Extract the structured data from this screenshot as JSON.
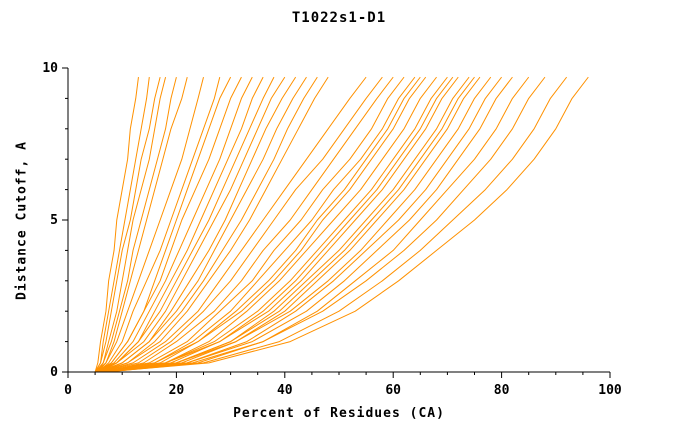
{
  "chart_data": {
    "type": "line",
    "title": "T1022s1-D1",
    "xlabel": "Percent of Residues (CA)",
    "ylabel": "Distance Cutoff, A",
    "xlim": [
      0,
      100
    ],
    "ylim": [
      0,
      10
    ],
    "x_major_ticks": [
      0,
      20,
      40,
      60,
      80,
      100
    ],
    "x_minor_step": 5,
    "y_major_ticks": [
      0,
      5,
      10
    ],
    "y_minor_step": 1,
    "grid": false,
    "legend": "none",
    "line_color": "#ff9100",
    "axis_color": "#000000",
    "background": "#ffffff",
    "y_samples": [
      0,
      0.3,
      1,
      2,
      3,
      4,
      5,
      6,
      7,
      8,
      9,
      9.7
    ],
    "series": [
      [
        5,
        5.5,
        6,
        7,
        7.5,
        8.5,
        9,
        10,
        11,
        11.5,
        12.5,
        13
      ],
      [
        5,
        6,
        6.5,
        7.5,
        8.5,
        9.5,
        10.5,
        11.5,
        12.5,
        13.5,
        14.5,
        15
      ],
      [
        5,
        6,
        7,
        8,
        9,
        10,
        11.5,
        12.5,
        13.5,
        15,
        16,
        17
      ],
      [
        5.5,
        6.5,
        7.5,
        9,
        10,
        11,
        12,
        13.5,
        15,
        16,
        17,
        18
      ],
      [
        5,
        6.5,
        8,
        9.5,
        11,
        12,
        13.5,
        15,
        16.5,
        18,
        19,
        20
      ],
      [
        5.5,
        7,
        8.5,
        10,
        11.5,
        13,
        14.5,
        16,
        17.5,
        19,
        21,
        22
      ],
      [
        5,
        7,
        9,
        11,
        13,
        15,
        17,
        19,
        21,
        22.5,
        24,
        25
      ],
      [
        5.5,
        7.5,
        10,
        12,
        14.5,
        17,
        19,
        21,
        23,
        25,
        27,
        28
      ],
      [
        5,
        8,
        11,
        14,
        16,
        18,
        20,
        22,
        24,
        26,
        28,
        30
      ],
      [
        5.5,
        8,
        11,
        14,
        17,
        19,
        21,
        23.5,
        26,
        28,
        30,
        32
      ],
      [
        5,
        8.5,
        12,
        15,
        18,
        20.5,
        23,
        25.5,
        28,
        30,
        32,
        34
      ],
      [
        6,
        9,
        13,
        16,
        19,
        22,
        24.5,
        27,
        29.5,
        32,
        34,
        36
      ],
      [
        5.5,
        9,
        13,
        17,
        20,
        23,
        26,
        28.5,
        31,
        33.5,
        36,
        38
      ],
      [
        5,
        9,
        14,
        18,
        21,
        24,
        27,
        30,
        32.5,
        35,
        37.5,
        40
      ],
      [
        6,
        10,
        15,
        19,
        22.5,
        26,
        29,
        31.5,
        34,
        36.5,
        39.5,
        42
      ],
      [
        5.5,
        10,
        15,
        20,
        24,
        27,
        30,
        33,
        36,
        38.5,
        41.5,
        44
      ],
      [
        6,
        11,
        16,
        21,
        25,
        28.5,
        32,
        35,
        38,
        40.5,
        43.5,
        46
      ],
      [
        5.5,
        11,
        17,
        22,
        26,
        30,
        33.5,
        36.5,
        39.5,
        42.5,
        45.5,
        48
      ],
      [
        6,
        12,
        18,
        24,
        28,
        32,
        36,
        40,
        44,
        48,
        52,
        55
      ],
      [
        6,
        13,
        19,
        25,
        30,
        34,
        38,
        42,
        47,
        51,
        55,
        58
      ],
      [
        6.5,
        14,
        20,
        27,
        32,
        36,
        41,
        45,
        49,
        53,
        57,
        60
      ],
      [
        6,
        15,
        22,
        28,
        34,
        38,
        43,
        47,
        52,
        56,
        59,
        62
      ],
      [
        6.5,
        16,
        23,
        30,
        35,
        40,
        45,
        49,
        54,
        58,
        61,
        64
      ],
      [
        7,
        17,
        24,
        31,
        37,
        42,
        46,
        51,
        55,
        59,
        62,
        65
      ],
      [
        6,
        16,
        24,
        32,
        38,
        43,
        47,
        52,
        56,
        60,
        63,
        66
      ],
      [
        7,
        18,
        26,
        33,
        39,
        44,
        49,
        54,
        58,
        62,
        65,
        68
      ],
      [
        6.5,
        18,
        27,
        35,
        41,
        46,
        51,
        56,
        60,
        64,
        67,
        70
      ],
      [
        7,
        19,
        28,
        36,
        42,
        47,
        52,
        57,
        61,
        65,
        68,
        71
      ],
      [
        6,
        18,
        28,
        37,
        43,
        48,
        53,
        58,
        62,
        66,
        69,
        72
      ],
      [
        7,
        20,
        30,
        38,
        44,
        50,
        55,
        60,
        64,
        68,
        71,
        74
      ],
      [
        6.5,
        20,
        30,
        39,
        45,
        51,
        56,
        61,
        65,
        69,
        72,
        75
      ],
      [
        7,
        21,
        31,
        40,
        46,
        52,
        57,
        62,
        66,
        70,
        73,
        76
      ],
      [
        6,
        20,
        31,
        41,
        48,
        54,
        59,
        64,
        68,
        72,
        75,
        78
      ],
      [
        7,
        22,
        33,
        42,
        49,
        55,
        61,
        66,
        70,
        74,
        77,
        80
      ],
      [
        6.5,
        22,
        34,
        44,
        51,
        57,
        63,
        68,
        72,
        76,
        79,
        82
      ],
      [
        7,
        24,
        36,
        46,
        53,
        60,
        65,
        70,
        75,
        79,
        82,
        85
      ],
      [
        6,
        23,
        36,
        47,
        55,
        62,
        68,
        73,
        78,
        82,
        85,
        88
      ],
      [
        7,
        25,
        39,
        50,
        58,
        65,
        71,
        77,
        82,
        86,
        89,
        92
      ],
      [
        6.5,
        26,
        41,
        53,
        61,
        68,
        75,
        81,
        86,
        90,
        93,
        96
      ]
    ]
  }
}
